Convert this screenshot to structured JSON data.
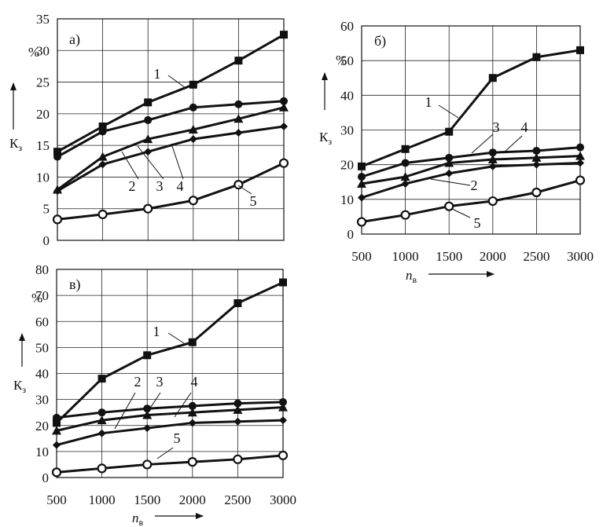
{
  "chart_data": [
    {
      "type": "line",
      "panel_label": "а)",
      "unit_label": "%",
      "ylabel": "К",
      "ylabel_sub": "з",
      "xlabel": "",
      "xlabel_sub": "",
      "x": [
        500,
        1000,
        1500,
        2000,
        2500,
        3000
      ],
      "xlim": [
        500,
        3000
      ],
      "ylim": [
        0,
        35
      ],
      "yticks": [
        "0",
        "5",
        "10",
        "15",
        "20",
        "25",
        "30",
        "35"
      ],
      "xticks": [],
      "grid": true,
      "series": [
        {
          "label": "1",
          "marker": "square",
          "values": [
            14,
            18,
            21.8,
            24.6,
            28.4,
            32.5
          ]
        },
        {
          "label": "2",
          "marker": "diamond",
          "values": [
            7.8,
            12,
            14,
            16,
            17,
            18
          ]
        },
        {
          "label": "3",
          "marker": "circle",
          "values": [
            13.2,
            17.2,
            19,
            21,
            21.5,
            22
          ]
        },
        {
          "label": "4",
          "marker": "triangle",
          "values": [
            8,
            13.2,
            16,
            17.5,
            19.2,
            21
          ]
        },
        {
          "label": "5",
          "marker": "open",
          "values": [
            3.3,
            4.1,
            5,
            6.3,
            8.8,
            12.2
          ]
        }
      ]
    },
    {
      "type": "line",
      "panel_label": "б)",
      "unit_label": "%",
      "ylabel": "К",
      "ylabel_sub": "з",
      "xlabel": "n",
      "xlabel_sub": "в",
      "x": [
        500,
        1000,
        1500,
        2000,
        2500,
        3000
      ],
      "xlim": [
        500,
        3000
      ],
      "ylim": [
        0,
        60
      ],
      "yticks": [
        "0",
        "10",
        "20",
        "30",
        "40",
        "50",
        "60"
      ],
      "xticks": [
        "500",
        "1000",
        "1500",
        "2000",
        "2500",
        "3000"
      ],
      "grid": true,
      "series": [
        {
          "label": "1",
          "marker": "square",
          "values": [
            19.5,
            24.5,
            29.5,
            45,
            51,
            53
          ]
        },
        {
          "label": "2",
          "marker": "diamond",
          "values": [
            10.5,
            14.5,
            17.5,
            19.5,
            20,
            20.5
          ]
        },
        {
          "label": "3",
          "marker": "circle",
          "values": [
            16.5,
            20.5,
            22,
            23.5,
            24,
            25
          ]
        },
        {
          "label": "4",
          "marker": "triangle",
          "values": [
            14.5,
            16.5,
            20.5,
            21.5,
            22,
            22.5
          ]
        },
        {
          "label": "5",
          "marker": "open",
          "values": [
            3.5,
            5.5,
            8,
            9.5,
            12,
            15.5
          ]
        }
      ]
    },
    {
      "type": "line",
      "panel_label": "в)",
      "unit_label": "%",
      "ylabel": "К",
      "ylabel_sub": "з",
      "xlabel": "n",
      "xlabel_sub": "в",
      "x": [
        500,
        1000,
        1500,
        2000,
        2500,
        3000
      ],
      "xlim": [
        500,
        3000
      ],
      "ylim": [
        0,
        80
      ],
      "yticks": [
        "0",
        "10",
        "20",
        "30",
        "40",
        "50",
        "60",
        "70",
        "80"
      ],
      "xticks": [
        "500",
        "1000",
        "1500",
        "2000",
        "2500",
        "3000"
      ],
      "grid": true,
      "series": [
        {
          "label": "1",
          "marker": "square",
          "values": [
            21,
            38,
            47,
            52,
            67,
            75
          ]
        },
        {
          "label": "2",
          "marker": "diamond",
          "values": [
            12.5,
            17,
            19,
            21,
            21.5,
            22
          ]
        },
        {
          "label": "3",
          "marker": "circle",
          "values": [
            23,
            25,
            26.5,
            27.5,
            28.5,
            29
          ]
        },
        {
          "label": "4",
          "marker": "triangle",
          "values": [
            18,
            22,
            24,
            25,
            26,
            27
          ]
        },
        {
          "label": "5",
          "marker": "open",
          "values": [
            2,
            3.5,
            5,
            6,
            7,
            8.5
          ]
        }
      ]
    }
  ]
}
